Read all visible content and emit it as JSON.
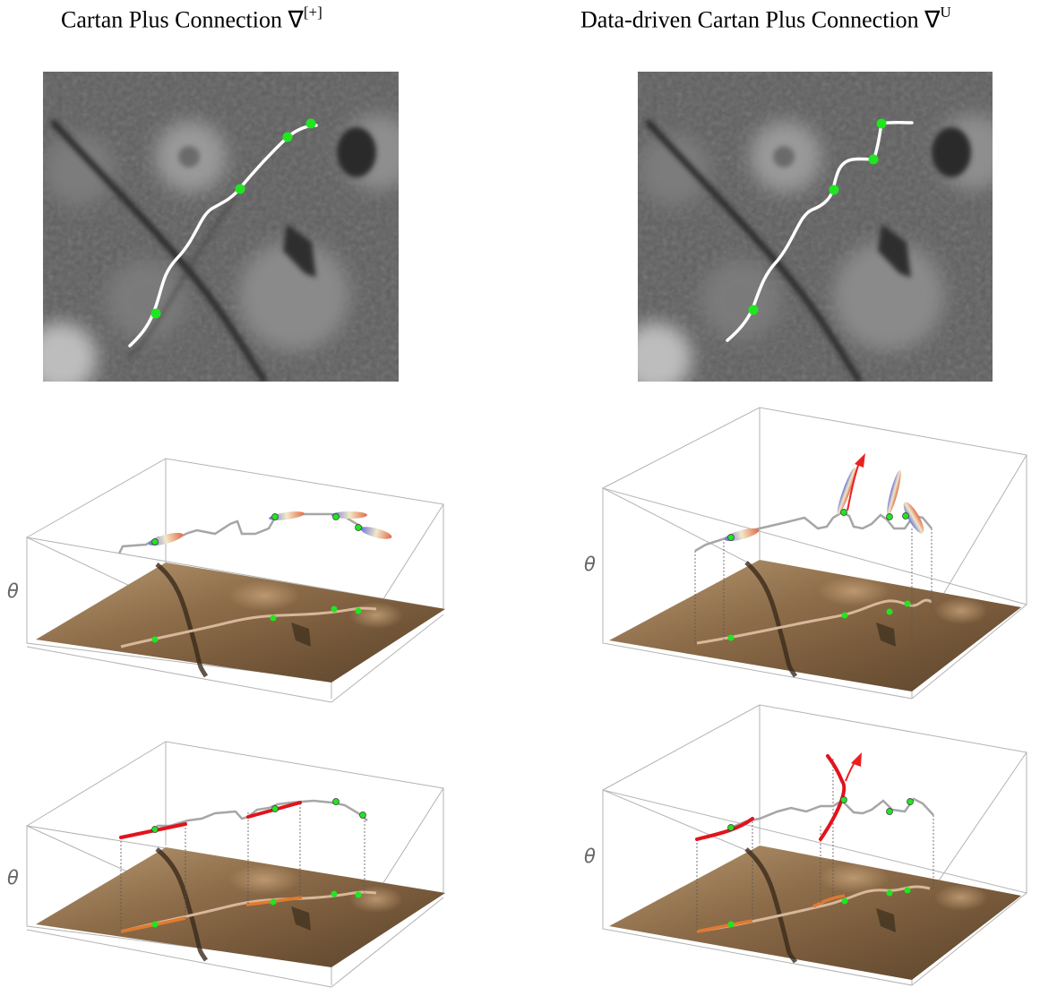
{
  "titles": {
    "left": {
      "text": "Cartan Plus Connection ∇",
      "sup": "[+]"
    },
    "right": {
      "text": "Data-driven Cartan Plus Connection ∇",
      "sup": "U"
    }
  },
  "axis_label": "θ",
  "colors": {
    "path": "#ffffff",
    "keypoint": "#1fe61f",
    "lift_curve": "#a6a6a6",
    "horizontal_segment": "#e0141c",
    "image_tint": "#9c7a55",
    "box_line": "#b3b3b3"
  },
  "panels": [
    {
      "name": "left-image",
      "keypoints": 4
    },
    {
      "name": "right-image",
      "keypoints": 4
    }
  ]
}
